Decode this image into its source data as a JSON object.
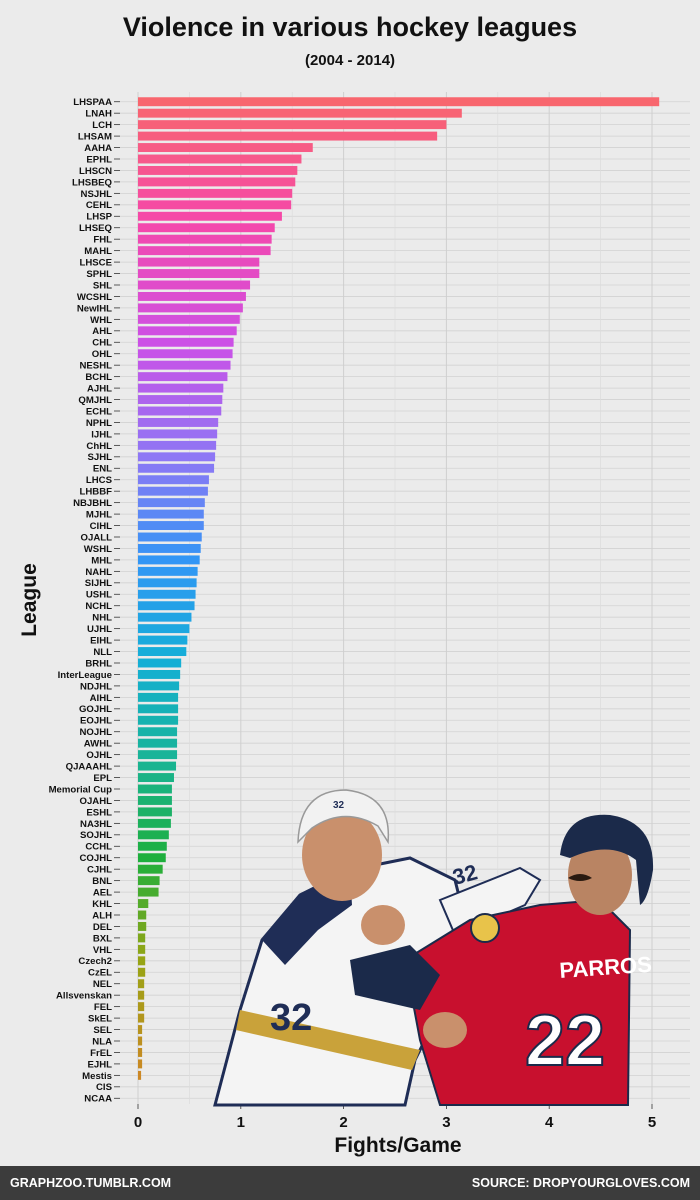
{
  "chart_data": {
    "type": "bar",
    "orientation": "horizontal",
    "title": "Violence in various hockey leagues",
    "subtitle": "(2004 - 2014)",
    "xlabel": "Fights/Game",
    "ylabel": "League",
    "xlim": [
      -0.3,
      5.3
    ],
    "xticks": [
      0,
      1,
      2,
      3,
      4,
      5
    ],
    "grid": true,
    "categories": [
      "LHSPAA",
      "LNAH",
      "LCH",
      "LHSAM",
      "AAHA",
      "EPHL",
      "LHSCN",
      "LHSBEQ",
      "NSJHL",
      "CEHL",
      "LHSP",
      "LHSEQ",
      "FHL",
      "MAHL",
      "LHSCE",
      "SPHL",
      "SHL",
      "WCSHL",
      "NewIHL",
      "WHL",
      "AHL",
      "CHL",
      "OHL",
      "NESHL",
      "BCHL",
      "AJHL",
      "QMJHL",
      "ECHL",
      "NPHL",
      "IJHL",
      "ChHL",
      "SJHL",
      "ENL",
      "LHCS",
      "LHBBF",
      "NBJBHL",
      "MJHL",
      "CIHL",
      "OJALL",
      "WSHL",
      "MHL",
      "NAHL",
      "SIJHL",
      "USHL",
      "NCHL",
      "NHL",
      "UJHL",
      "EIHL",
      "NLL",
      "BRHL",
      "InterLeague",
      "NDJHL",
      "AIHL",
      "GOJHL",
      "EOJHL",
      "NOJHL",
      "AWHL",
      "OJHL",
      "QJAAAHL",
      "EPL",
      "Memorial Cup",
      "OJAHL",
      "ESHL",
      "NA3HL",
      "SOJHL",
      "CCHL",
      "COJHL",
      "CJHL",
      "BNL",
      "AEL",
      "KHL",
      "ALH",
      "DEL",
      "BXL",
      "VHL",
      "Czech2",
      "CzEL",
      "NEL",
      "Allsvenskan",
      "FEL",
      "SkEL",
      "SEL",
      "NLA",
      "FrEL",
      "EJHL",
      "Mestis",
      "CIS",
      "NCAA"
    ],
    "values": [
      5.07,
      3.15,
      3.0,
      2.91,
      1.7,
      1.59,
      1.55,
      1.53,
      1.5,
      1.49,
      1.4,
      1.33,
      1.3,
      1.29,
      1.18,
      1.18,
      1.09,
      1.05,
      1.02,
      0.99,
      0.96,
      0.93,
      0.92,
      0.9,
      0.87,
      0.83,
      0.82,
      0.81,
      0.78,
      0.77,
      0.76,
      0.75,
      0.74,
      0.69,
      0.68,
      0.65,
      0.64,
      0.64,
      0.62,
      0.61,
      0.6,
      0.58,
      0.57,
      0.56,
      0.55,
      0.52,
      0.5,
      0.48,
      0.47,
      0.42,
      0.41,
      0.4,
      0.39,
      0.39,
      0.39,
      0.38,
      0.38,
      0.38,
      0.37,
      0.35,
      0.33,
      0.33,
      0.33,
      0.32,
      0.3,
      0.28,
      0.27,
      0.24,
      0.21,
      0.2,
      0.1,
      0.08,
      0.08,
      0.07,
      0.07,
      0.07,
      0.07,
      0.06,
      0.06,
      0.06,
      0.06,
      0.04,
      0.04,
      0.04,
      0.04,
      0.03,
      0.0,
      0.0
    ]
  },
  "footer": {
    "left": "GRAPHZOO.TUMBLR.COM",
    "right": "SOURCE: DROPYOURGLOVES.COM"
  },
  "photo": {
    "player_left_number": "32",
    "player_right_number": "22",
    "player_right_name": "PARROS"
  }
}
